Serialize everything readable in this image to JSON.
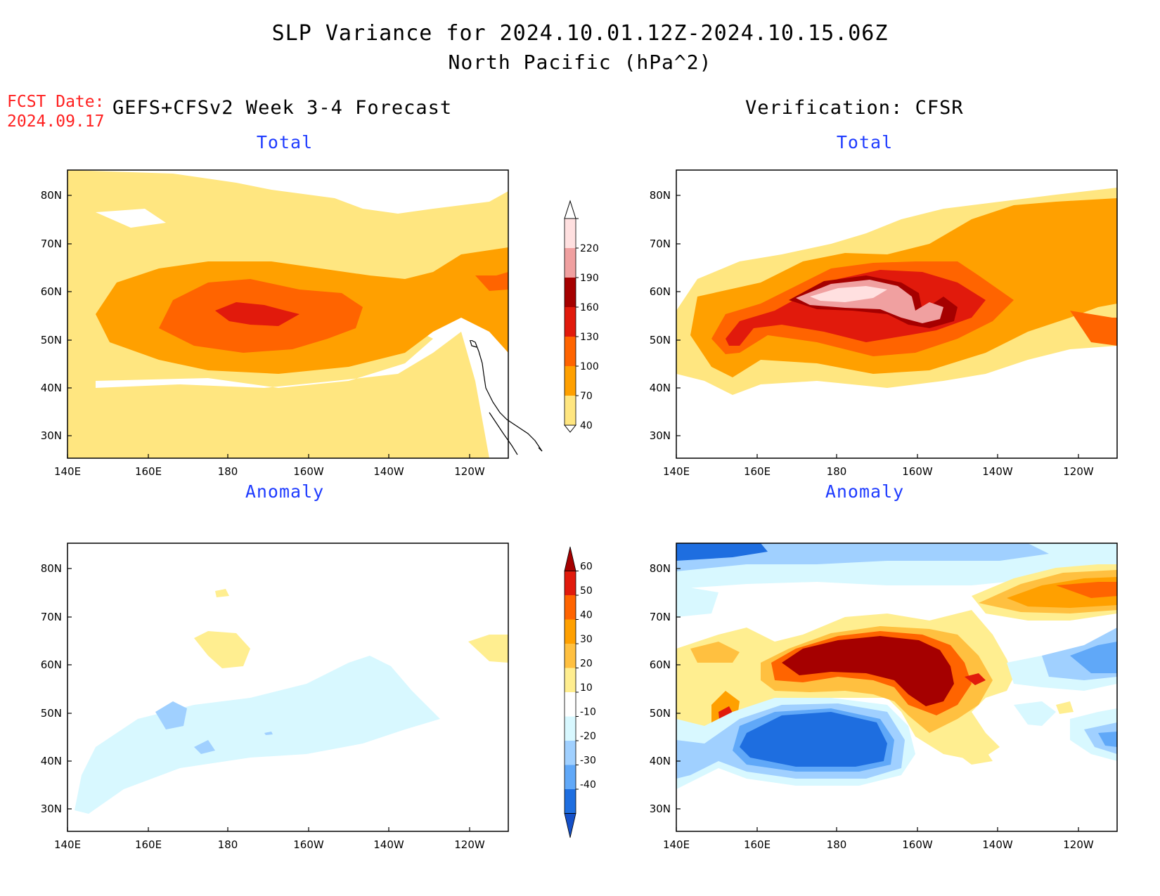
{
  "title_line1": "SLP Variance for 2024.10.01.12Z-2024.10.15.06Z",
  "title_line2": "North Pacific (hPa^2)",
  "fcst_label_line1": "FCST Date:",
  "fcst_label_line2": "2024.09.17",
  "left_header": "GEFS+CFSv2 Week 3-4 Forecast",
  "right_header": "Verification: CFSR",
  "panels": {
    "top_left": {
      "title": "Total"
    },
    "top_right": {
      "title": "Total"
    },
    "bottom_left": {
      "title": "Anomaly"
    },
    "bottom_right": {
      "title": "Anomaly"
    }
  },
  "axes": {
    "lon_labels": [
      "140E",
      "160E",
      "180",
      "160W",
      "140W",
      "120W"
    ],
    "lat_labels": [
      "80N",
      "70N",
      "60N",
      "50N",
      "40N",
      "30N"
    ]
  },
  "total_colorbar": {
    "levels": [
      "40",
      "70",
      "100",
      "130",
      "160",
      "190",
      "220"
    ],
    "colors": [
      "#ffe680",
      "#ffa000",
      "#ff6400",
      "#e11a0c",
      "#a50000",
      "#f0a0a0",
      "#ffe0e0"
    ]
  },
  "anomaly_colorbar": {
    "levels": [
      "60",
      "50",
      "40",
      "30",
      "20",
      "10",
      "-10",
      "-20",
      "-30",
      "-40"
    ],
    "colors": [
      "#a50000",
      "#e11a0c",
      "#ff6400",
      "#ffa000",
      "#ffc040",
      "#ffee90",
      "#ffffff",
      "#d8f8ff",
      "#a0d0ff",
      "#60a8f8",
      "#1e6ee0",
      "#1450c8"
    ]
  }
}
